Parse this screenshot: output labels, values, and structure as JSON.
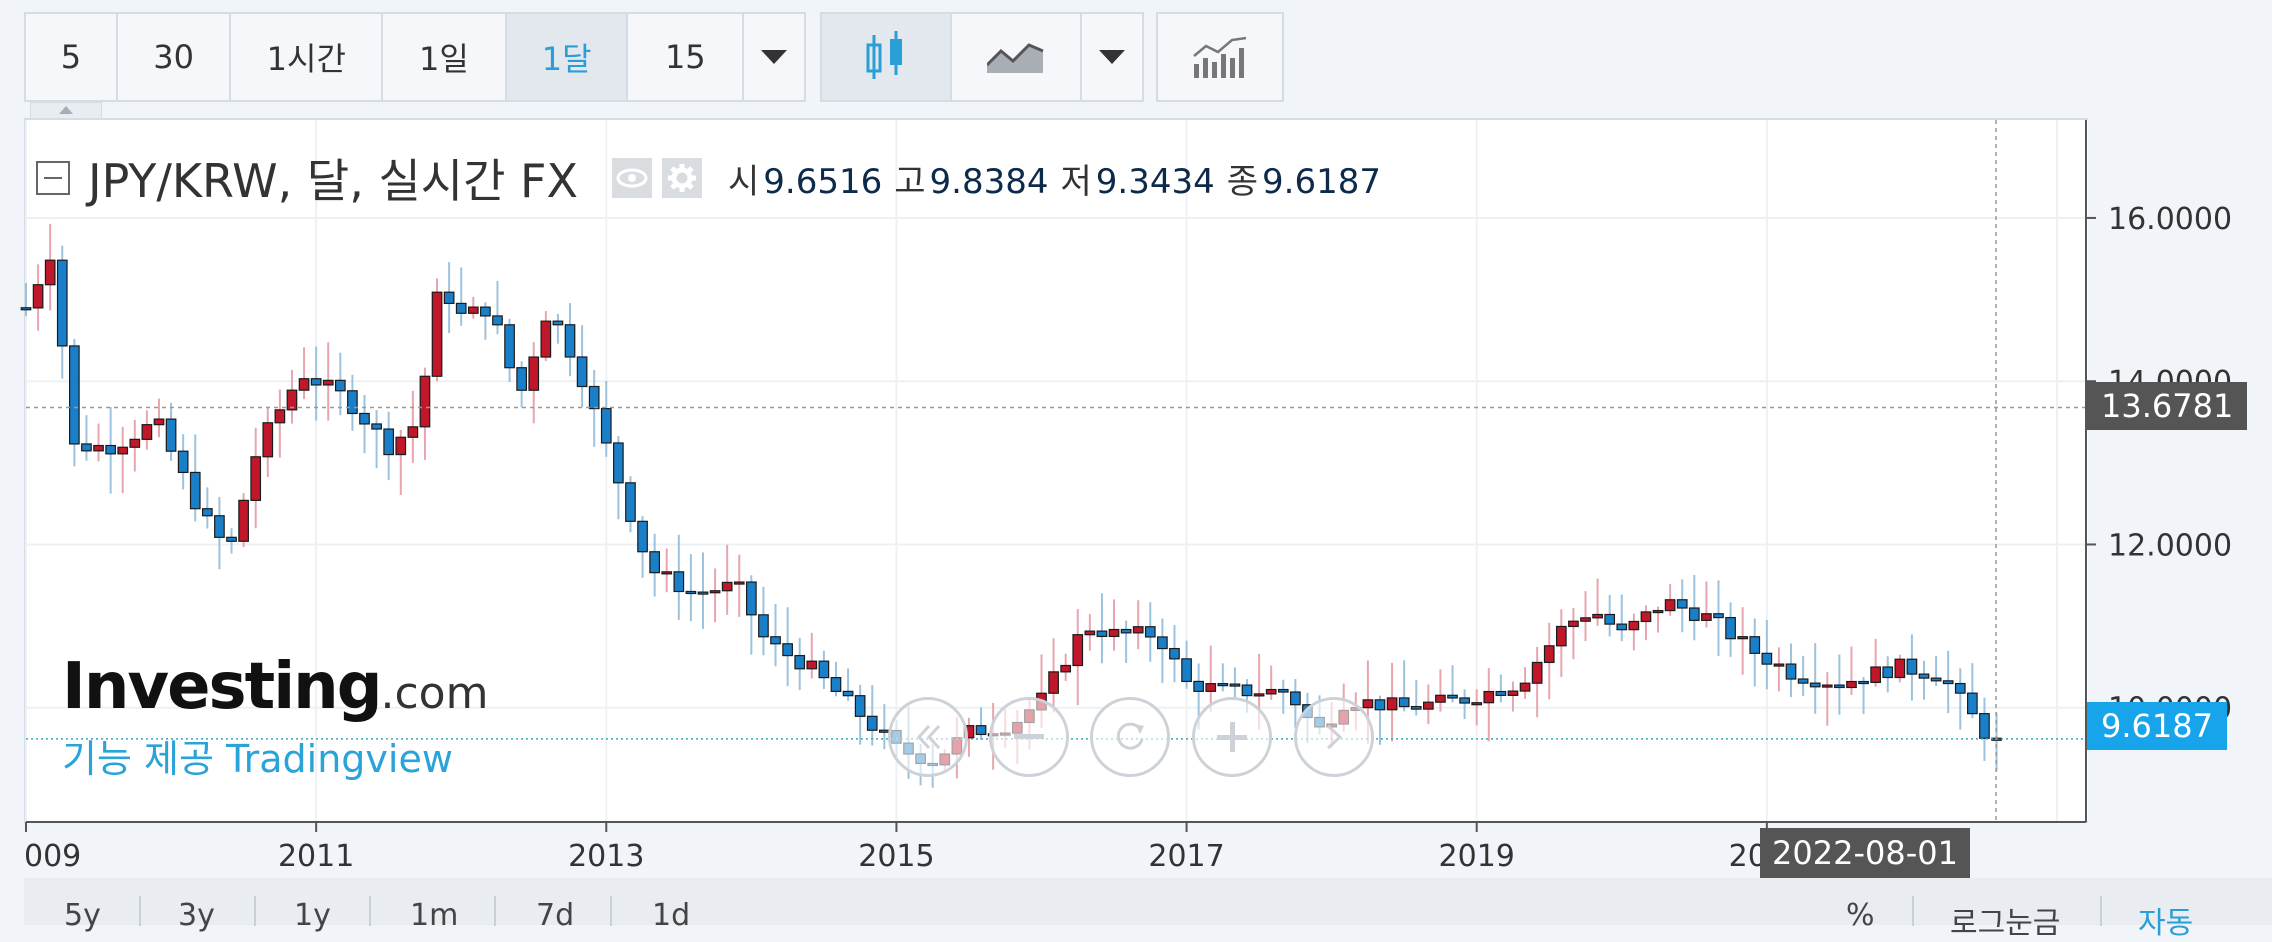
{
  "toolbar": {
    "intervals": [
      "5",
      "30",
      "1시간",
      "1일",
      "1달",
      "15"
    ],
    "active_interval": "1달",
    "chart_types": [
      "candlestick-icon",
      "area-line-icon",
      "chevron-down-icon",
      "indicators-icon"
    ]
  },
  "legend": {
    "title": "JPY/KRW, 달, 실시간 FX",
    "open_label": "시",
    "open": "9.6516",
    "high_label": "고",
    "high": "9.8384",
    "low_label": "저",
    "low": "9.3434",
    "close_label": "종",
    "close": "9.6187"
  },
  "watermark": {
    "logo_main": "Investing",
    "logo_suffix": ".com",
    "sub": "기능 제공 Tradingview"
  },
  "crosshair": {
    "price_label": "13.6781",
    "date_label": "2022-08-01"
  },
  "last_price_label": "9.6187",
  "bottom_bar": {
    "ranges": [
      "5y",
      "3y",
      "1y",
      "1m",
      "7d",
      "1d"
    ],
    "right": [
      "%",
      "로그눈금",
      "자동"
    ]
  },
  "colors": {
    "up": "#c0172b",
    "down": "#1a7fc9",
    "accent": "#2a9fd6",
    "last_price": "#17a4ea",
    "crosshair_tag": "#555555"
  },
  "chart_data": {
    "type": "candlestick",
    "title": "JPY/KRW, 달, 실시간 FX",
    "x_tick_labels": [
      "009",
      "2011",
      "2013",
      "2015",
      "2017",
      "2019",
      "2021"
    ],
    "x_tick_years": [
      2009,
      2011,
      2013,
      2015,
      2017,
      2019,
      2021
    ],
    "y_tick_labels": [
      "16.0000",
      "14.0000",
      "12.0000",
      "10.0000"
    ],
    "y_ticks": [
      16,
      14,
      12,
      10
    ],
    "x_range": [
      2009.0,
      2023.2
    ],
    "y_range": [
      8.6,
      17.2
    ],
    "crosshair": {
      "x": 2022.58,
      "y": 13.6781
    },
    "last_close": 9.6187,
    "waypoints": [
      [
        2009.0,
        14.9
      ],
      [
        2009.2,
        15.7
      ],
      [
        2009.3,
        13.2
      ],
      [
        2009.6,
        13.2
      ],
      [
        2009.9,
        13.5
      ],
      [
        2010.2,
        12.4
      ],
      [
        2010.4,
        11.9
      ],
      [
        2010.6,
        13.2
      ],
      [
        2010.9,
        14.1
      ],
      [
        2011.2,
        13.8
      ],
      [
        2011.5,
        13.2
      ],
      [
        2011.7,
        13.5
      ],
      [
        2011.85,
        15.2
      ],
      [
        2012.0,
        14.8
      ],
      [
        2012.2,
        14.9
      ],
      [
        2012.4,
        13.8
      ],
      [
        2012.6,
        14.9
      ],
      [
        2012.8,
        14.2
      ],
      [
        2013.0,
        13.2
      ],
      [
        2013.3,
        11.7
      ],
      [
        2013.6,
        11.4
      ],
      [
        2013.9,
        11.5
      ],
      [
        2014.1,
        10.8
      ],
      [
        2014.4,
        10.5
      ],
      [
        2014.7,
        10.0
      ],
      [
        2015.0,
        9.5
      ],
      [
        2015.25,
        9.35
      ],
      [
        2015.5,
        9.7
      ],
      [
        2015.8,
        9.8
      ],
      [
        2016.0,
        10.1
      ],
      [
        2016.3,
        11.0
      ],
      [
        2016.5,
        10.9
      ],
      [
        2016.8,
        10.9
      ],
      [
        2017.0,
        10.3
      ],
      [
        2017.3,
        10.2
      ],
      [
        2017.7,
        10.2
      ],
      [
        2017.9,
        9.7
      ],
      [
        2018.1,
        10.1
      ],
      [
        2018.5,
        10.0
      ],
      [
        2018.9,
        10.1
      ],
      [
        2019.3,
        10.3
      ],
      [
        2019.6,
        11.0
      ],
      [
        2019.8,
        11.2
      ],
      [
        2020.0,
        10.9
      ],
      [
        2020.3,
        11.3
      ],
      [
        2020.6,
        11.1
      ],
      [
        2020.9,
        10.7
      ],
      [
        2021.2,
        10.4
      ],
      [
        2021.5,
        10.3
      ],
      [
        2021.9,
        10.5
      ],
      [
        2022.2,
        10.4
      ],
      [
        2022.5,
        9.7
      ],
      [
        2022.6,
        9.6187
      ]
    ]
  }
}
